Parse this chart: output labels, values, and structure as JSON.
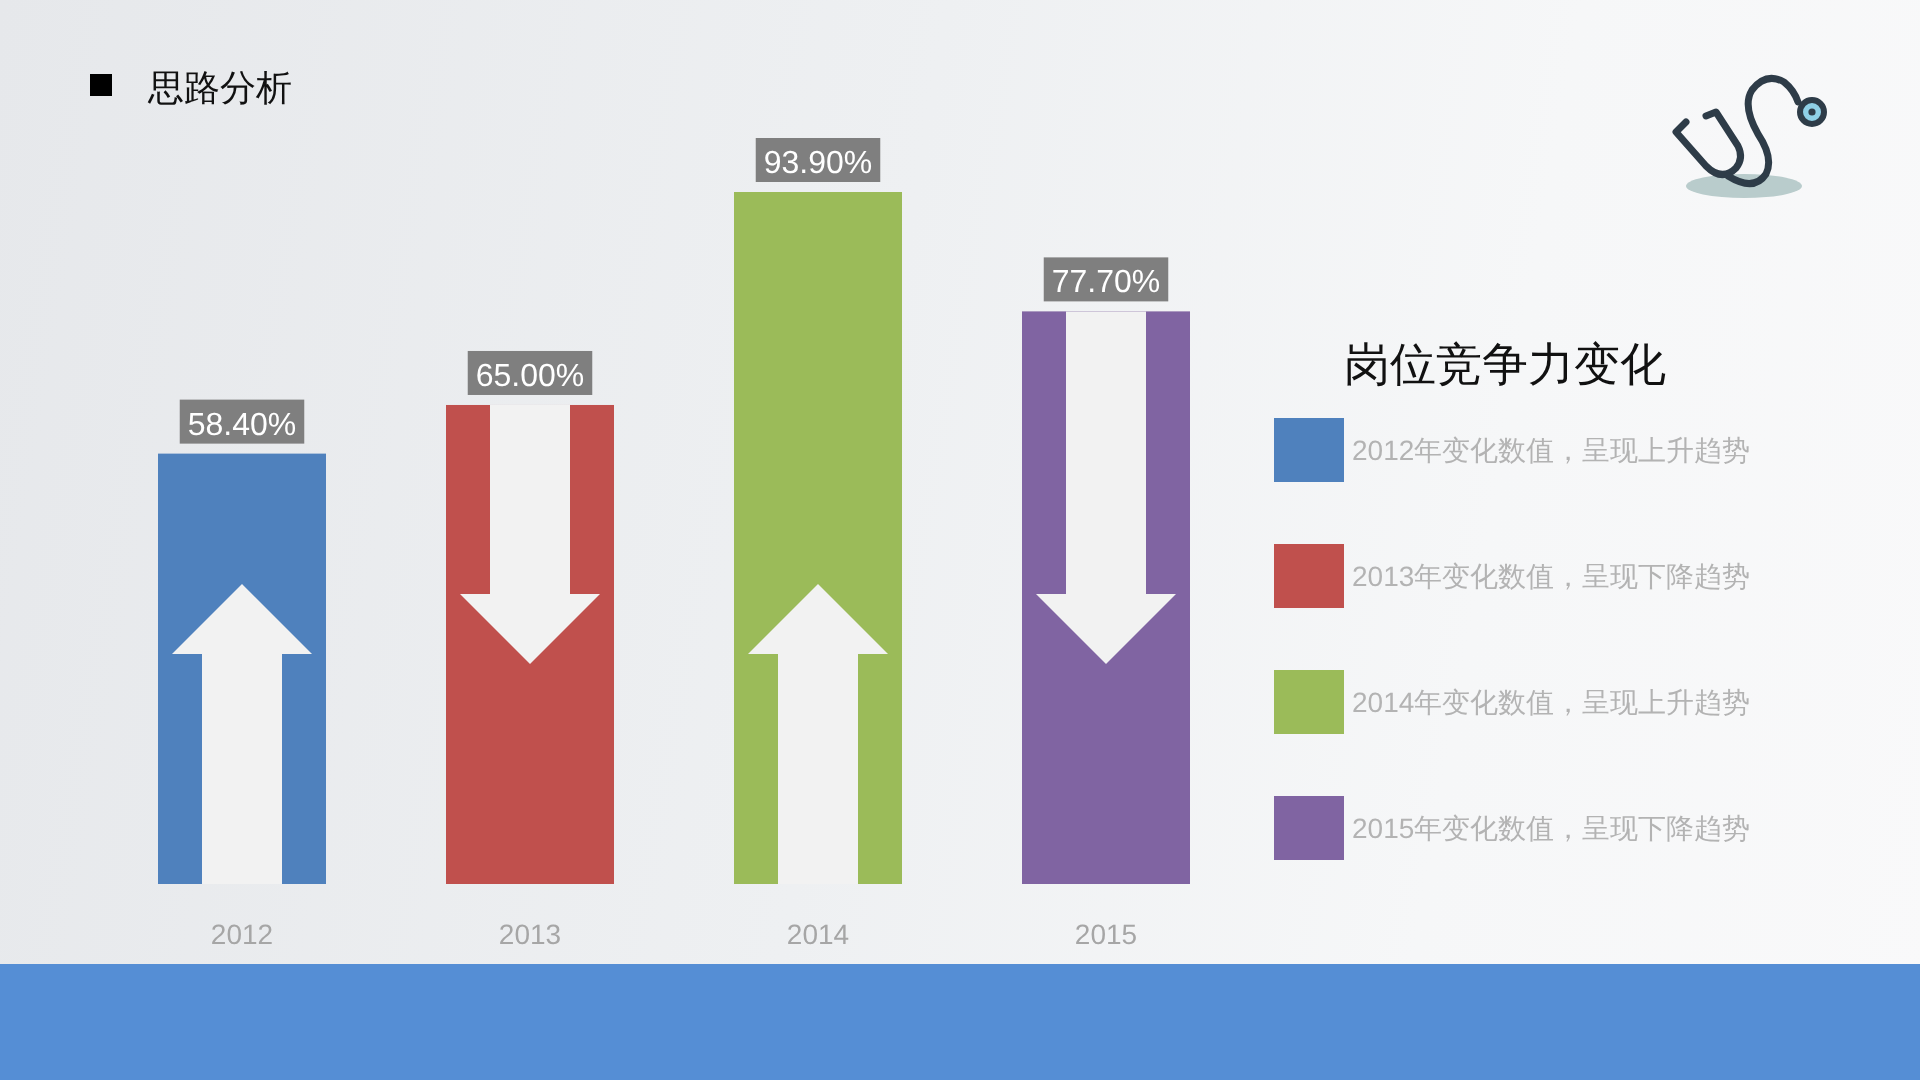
{
  "chart_data": {
    "type": "bar",
    "title": "思路分析",
    "categories": [
      "2012",
      "2013",
      "2014",
      "2015"
    ],
    "stacked": true,
    "series": [
      {
        "name": "2012年变化数值，呈现上升趋势",
        "color": "#4f81bd",
        "values": [
          58.4,
          null,
          null,
          null
        ],
        "value_labels": [
          "58.40%",
          null,
          null,
          null
        ]
      },
      {
        "name": "2013年变化数值，呈现下降趋势",
        "color": "#c0504d",
        "values": [
          null,
          65.0,
          null,
          null
        ],
        "value_labels": [
          null,
          "65.00%",
          null,
          null
        ]
      },
      {
        "name": "2014年变化数值，呈现上升趋势",
        "color": "#9bbb59",
        "values": [
          null,
          null,
          93.9,
          null
        ],
        "value_labels": [
          null,
          null,
          "93.90%",
          null
        ]
      },
      {
        "name": "2015年变化数值，呈现下降趋势",
        "color": "#8064a2",
        "values": [
          null,
          null,
          null,
          77.7
        ],
        "value_labels": [
          null,
          null,
          null,
          "77.70%"
        ]
      }
    ],
    "legend_title": "岗位竞争力变化",
    "legend": "right"
  }
}
